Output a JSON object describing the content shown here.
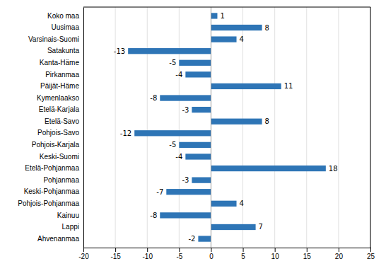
{
  "chart_data": {
    "type": "bar",
    "orientation": "horizontal",
    "categories": [
      "Koko maa",
      "Uusimaa",
      "Varsinais-Suomi",
      "Satakunta",
      "Kanta-Häme",
      "Pirkanmaa",
      "Päijät-Häme",
      "Kymenlaakso",
      "Etelä-Karjala",
      "Etelä-Savo",
      "Pohjois-Savo",
      "Pohjois-Karjala",
      "Keski-Suomi",
      "Etelä-Pohjanmaa",
      "Pohjanmaa",
      "Keski-Pohjanmaa",
      "Pohjois-Pohjanmaa",
      "Kainuu",
      "Lappi",
      "Ahvenanmaa"
    ],
    "values": [
      1,
      8,
      4,
      -13,
      -5,
      -4,
      11,
      -8,
      -3,
      8,
      -12,
      -5,
      -4,
      18,
      -3,
      -7,
      4,
      -8,
      7,
      -2
    ],
    "color": "#2e75b6",
    "xlim": [
      -20,
      25
    ],
    "xticks": [
      -20,
      -15,
      -10,
      -5,
      0,
      5,
      10,
      15,
      20,
      25
    ],
    "grid": true,
    "data_labels": true
  }
}
